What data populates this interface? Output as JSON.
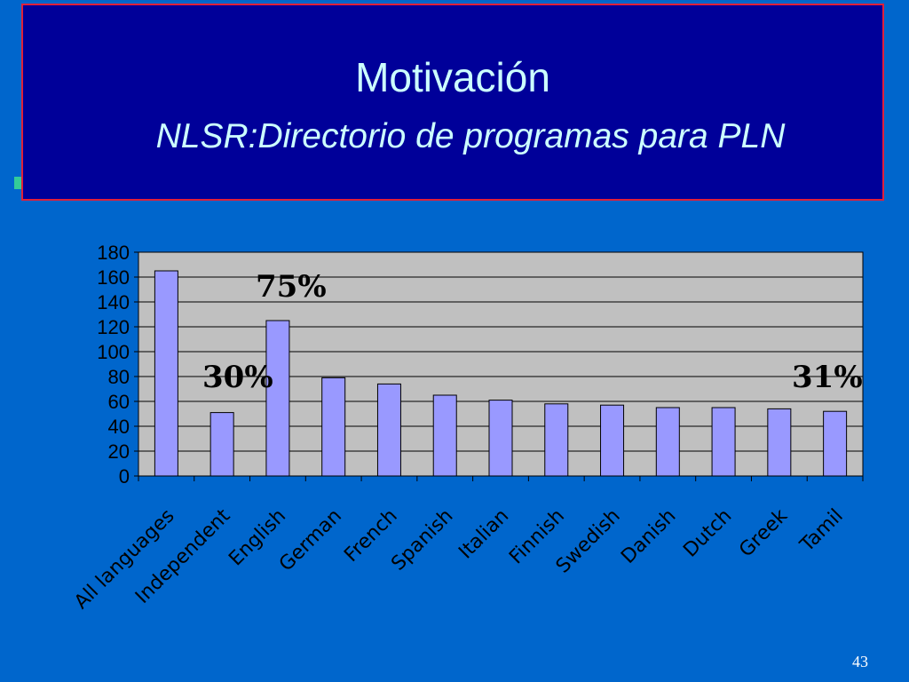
{
  "slide": {
    "title": "Motivación",
    "subtitle": "NLSR:Directorio de programas para PLN",
    "page_number": "43",
    "colors": {
      "background": "#0066cc",
      "title_box": "#000099",
      "title_border": "#e0203a",
      "title_text": "#ccffff",
      "bullet": "#33cc99"
    }
  },
  "chart_data": {
    "type": "bar",
    "categories": [
      "All languages",
      "Independent",
      "English",
      "German",
      "French",
      "Spanish",
      "Italian",
      "Finnish",
      "Swedish",
      "Danish",
      "Dutch",
      "Greek",
      "Tamil"
    ],
    "values": [
      165,
      51,
      125,
      79,
      74,
      65,
      61,
      58,
      57,
      55,
      55,
      54,
      52
    ],
    "ylim": [
      0,
      180
    ],
    "yticks": [
      0,
      20,
      40,
      60,
      80,
      100,
      120,
      140,
      160,
      180
    ],
    "grid": true,
    "plot_background": "#c0c0c0",
    "bar_color": "#9999ff",
    "annotations": [
      "30%",
      "75%",
      "31%"
    ]
  }
}
